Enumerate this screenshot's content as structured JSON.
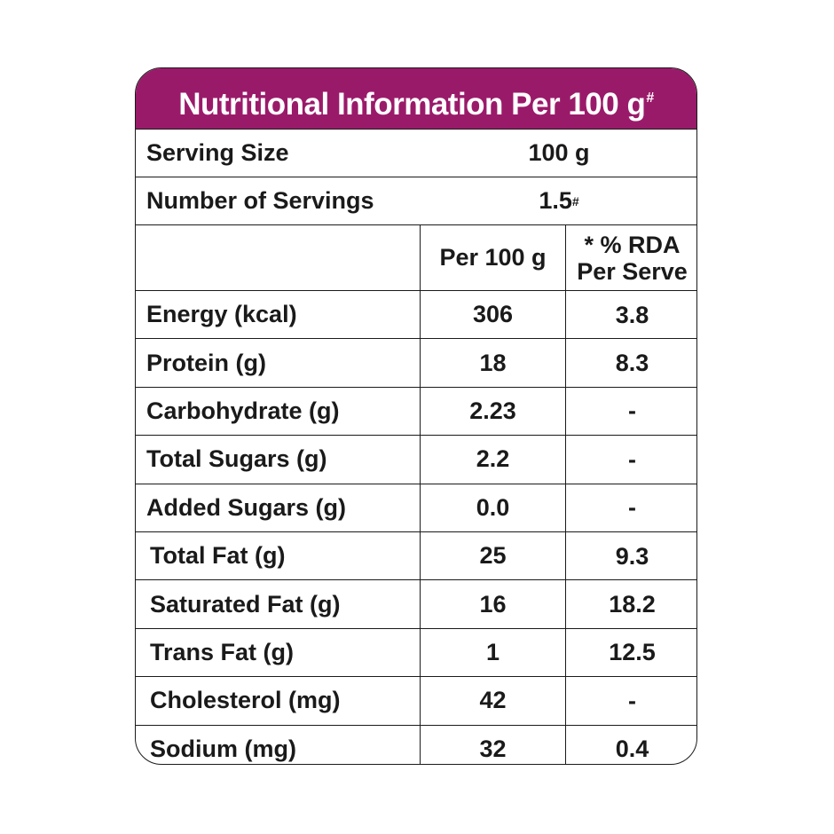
{
  "header": {
    "title": "Nutritional Information Per 100 g",
    "title_mark": "#"
  },
  "serving_size": {
    "label": "Serving Size",
    "value": "100 g"
  },
  "servings": {
    "label": "Number of Servings",
    "value": "1.5",
    "mark": "#"
  },
  "columns": {
    "per100": "Per 100 g",
    "rda_line1": "* % RDA",
    "rda_line2": "Per Serve"
  },
  "rows": [
    {
      "label": "Energy (kcal)",
      "per100": "306",
      "rda": "3.8"
    },
    {
      "label": "Protein (g)",
      "per100": "18",
      "rda": "8.3"
    },
    {
      "label": "Carbohydrate (g)",
      "per100": "2.23",
      "rda": "-"
    },
    {
      "label": "Total Sugars (g)",
      "per100": "2.2",
      "rda": "-"
    },
    {
      "label": "Added Sugars (g)",
      "per100": "0.0",
      "rda": "-"
    },
    {
      "label": "Total Fat (g)",
      "per100": "25",
      "rda": "9.3"
    },
    {
      "label": "Saturated Fat (g)",
      "per100": "16",
      "rda": "18.2"
    },
    {
      "label": "Trans Fat (g)",
      "per100": "1",
      "rda": "12.5"
    },
    {
      "label": "Cholesterol (mg)",
      "per100": "42",
      "rda": "-"
    },
    {
      "label": "Sodium (mg)",
      "per100": "32",
      "rda": "0.4"
    }
  ],
  "colors": {
    "header_bg": "#9a1a6a",
    "border": "#1a1a1a"
  }
}
